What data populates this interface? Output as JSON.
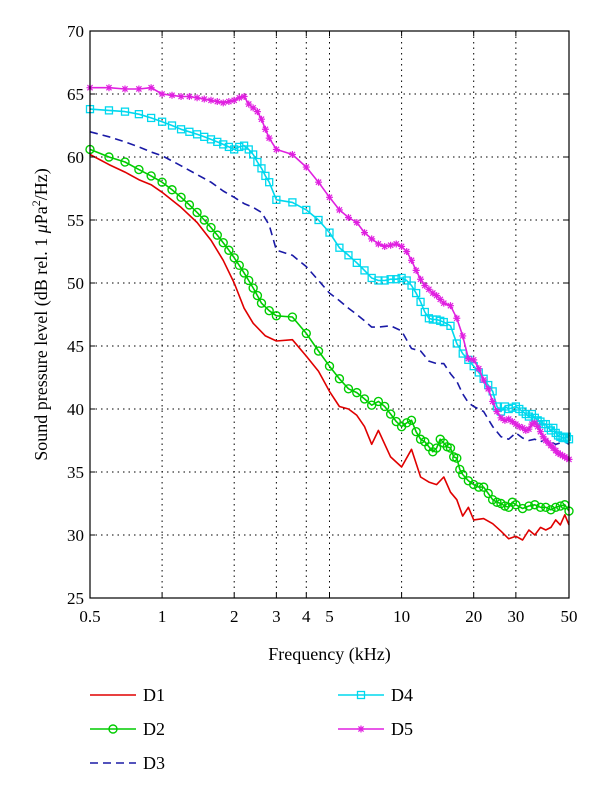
{
  "chart_data": {
    "type": "line",
    "xlabel": "Frequency (kHz)",
    "ylabel_parts": [
      "Sound pressure level (dB rel. 1 ",
      "μ",
      "Pa",
      "2",
      "/Hz)"
    ],
    "x_scale": "log",
    "xlim": [
      0.5,
      50
    ],
    "ylim": [
      25,
      70
    ],
    "x_ticks": [
      0.5,
      1,
      2,
      3,
      4,
      5,
      10,
      20,
      30,
      50
    ],
    "x_tick_labels": [
      "0.5",
      "1",
      "2",
      "3",
      "4",
      "5",
      "10",
      "20",
      "30",
      "50"
    ],
    "y_ticks": [
      25,
      30,
      35,
      40,
      45,
      50,
      55,
      60,
      65,
      70
    ],
    "y_tick_labels": [
      "25",
      "30",
      "35",
      "40",
      "45",
      "50",
      "55",
      "60",
      "65",
      "70"
    ],
    "grid": true,
    "legend_placement": "below",
    "series": [
      {
        "name": "D1",
        "color": "#e00000",
        "dash": "solid",
        "marker": "none",
        "x": [
          0.5,
          0.6,
          0.7,
          0.8,
          0.9,
          1.0,
          1.2,
          1.4,
          1.6,
          1.8,
          2.0,
          2.2,
          2.4,
          2.7,
          3.0,
          3.5,
          4.0,
          4.5,
          5.0,
          5.5,
          6.0,
          6.5,
          7.0,
          7.5,
          8.0,
          9.0,
          10.0,
          11.0,
          12.0,
          13.0,
          14.0,
          15.0,
          16.0,
          17.0,
          18.0,
          19.0,
          20.0,
          22.0,
          24.0,
          26.0,
          28.0,
          30.0,
          32.0,
          34.0,
          36.0,
          38.0,
          40.0,
          42.0,
          44.0,
          46.0,
          48.0,
          50.0
        ],
        "y": [
          60.2,
          59.4,
          58.8,
          58.2,
          57.8,
          57.2,
          56.0,
          54.8,
          53.4,
          51.8,
          50.0,
          48.0,
          46.8,
          45.8,
          45.4,
          45.5,
          44.2,
          43.0,
          41.4,
          40.2,
          40.0,
          39.5,
          38.6,
          37.2,
          38.3,
          36.2,
          35.4,
          36.8,
          34.6,
          34.2,
          34.0,
          34.6,
          33.4,
          32.8,
          31.5,
          32.2,
          31.2,
          31.3,
          30.9,
          30.3,
          29.7,
          29.9,
          29.6,
          30.4,
          30.0,
          30.6,
          30.4,
          30.6,
          31.2,
          30.8,
          31.6,
          30.8
        ]
      },
      {
        "name": "D2",
        "color": "#00cc00",
        "dash": "solid",
        "marker": "circle",
        "x": [
          0.5,
          0.6,
          0.7,
          0.8,
          0.9,
          1.0,
          1.1,
          1.2,
          1.3,
          1.4,
          1.5,
          1.6,
          1.7,
          1.8,
          1.9,
          2.0,
          2.1,
          2.2,
          2.3,
          2.4,
          2.5,
          2.6,
          2.8,
          3.0,
          3.5,
          4.0,
          4.5,
          5.0,
          5.5,
          6.0,
          6.5,
          7.0,
          7.5,
          8.0,
          8.5,
          9.0,
          9.5,
          10.0,
          10.5,
          11.0,
          11.5,
          12.0,
          12.5,
          13.0,
          13.5,
          14.0,
          14.5,
          15.0,
          15.5,
          16.0,
          16.5,
          17.0,
          17.5,
          18.0,
          19.0,
          20.0,
          21.0,
          22.0,
          23.0,
          24.0,
          25.0,
          26.0,
          27.0,
          28.0,
          29.0,
          30.0,
          32.0,
          34.0,
          36.0,
          38.0,
          40.0,
          42.0,
          44.0,
          46.0,
          48.0,
          50.0
        ],
        "y": [
          60.6,
          60.0,
          59.6,
          59.0,
          58.5,
          58.0,
          57.4,
          56.8,
          56.2,
          55.6,
          55.0,
          54.4,
          53.8,
          53.2,
          52.6,
          52.0,
          51.4,
          50.8,
          50.2,
          49.6,
          49.0,
          48.4,
          47.8,
          47.4,
          47.3,
          46.0,
          44.6,
          43.4,
          42.4,
          41.6,
          41.3,
          40.8,
          40.3,
          40.6,
          40.2,
          39.6,
          39.0,
          38.6,
          38.9,
          39.1,
          38.2,
          37.6,
          37.4,
          37.0,
          36.6,
          36.9,
          37.6,
          37.3,
          37.0,
          36.9,
          36.2,
          36.1,
          35.2,
          34.8,
          34.3,
          34.0,
          33.8,
          33.8,
          33.3,
          32.8,
          32.6,
          32.5,
          32.3,
          32.2,
          32.6,
          32.4,
          32.1,
          32.3,
          32.4,
          32.2,
          32.2,
          32.0,
          32.2,
          32.3,
          32.4,
          31.9
        ]
      },
      {
        "name": "D3",
        "color": "#1a1aa6",
        "dash": "dash",
        "marker": "none",
        "x": [
          0.5,
          0.6,
          0.7,
          0.8,
          0.9,
          1.0,
          1.2,
          1.4,
          1.6,
          1.8,
          2.0,
          2.2,
          2.4,
          2.6,
          2.8,
          3.0,
          3.5,
          4.0,
          4.5,
          5.0,
          5.5,
          6.0,
          6.5,
          7.0,
          7.5,
          8.0,
          9.0,
          10.0,
          11.0,
          12.0,
          13.0,
          14.0,
          15.0,
          16.0,
          17.0,
          18.0,
          19.0,
          20.0,
          22.0,
          24.0,
          26.0,
          28.0,
          30.0,
          32.0,
          34.0,
          36.0,
          38.0,
          40.0,
          42.0,
          44.0,
          46.0,
          48.0,
          50.0
        ],
        "y": [
          62.0,
          61.6,
          61.2,
          60.8,
          60.4,
          60.1,
          59.3,
          58.6,
          58.0,
          57.3,
          56.8,
          56.3,
          56.0,
          55.6,
          54.6,
          52.6,
          52.2,
          51.3,
          50.2,
          49.2,
          48.6,
          48.0,
          47.5,
          47.0,
          46.5,
          46.5,
          46.6,
          46.2,
          44.8,
          44.6,
          43.8,
          43.6,
          43.6,
          42.8,
          42.2,
          41.2,
          40.5,
          40.2,
          39.8,
          38.6,
          37.8,
          37.6,
          38.1,
          37.7,
          37.5,
          37.6,
          37.4,
          37.6,
          37.4,
          37.2,
          37.3,
          37.4,
          37.2
        ]
      },
      {
        "name": "D4",
        "color": "#00d8ee",
        "dash": "solid",
        "marker": "square",
        "x": [
          0.5,
          0.6,
          0.7,
          0.8,
          0.9,
          1.0,
          1.1,
          1.2,
          1.3,
          1.4,
          1.5,
          1.6,
          1.7,
          1.8,
          1.9,
          2.0,
          2.1,
          2.2,
          2.3,
          2.4,
          2.5,
          2.6,
          2.7,
          2.8,
          3.0,
          3.5,
          4.0,
          4.5,
          5.0,
          5.5,
          6.0,
          6.5,
          7.0,
          7.5,
          8.0,
          8.5,
          9.0,
          9.5,
          10.0,
          10.5,
          11.0,
          11.5,
          12.0,
          12.5,
          13.0,
          13.5,
          14.0,
          14.5,
          15.0,
          16.0,
          17.0,
          18.0,
          19.0,
          20.0,
          21.0,
          22.0,
          23.0,
          24.0,
          25.0,
          26.0,
          27.0,
          28.0,
          29.0,
          30.0,
          31.0,
          32.0,
          33.0,
          34.0,
          35.0,
          36.0,
          37.0,
          38.0,
          39.0,
          40.0,
          41.0,
          42.0,
          43.0,
          44.0,
          45.0,
          46.0,
          47.0,
          48.0,
          49.0,
          50.0
        ],
        "y": [
          63.8,
          63.7,
          63.6,
          63.4,
          63.1,
          62.8,
          62.5,
          62.2,
          62.0,
          61.8,
          61.6,
          61.4,
          61.2,
          61.0,
          60.8,
          60.6,
          60.8,
          60.9,
          60.6,
          60.2,
          59.6,
          59.1,
          58.5,
          58.0,
          56.6,
          56.4,
          55.8,
          55.0,
          54.0,
          52.8,
          52.2,
          51.6,
          51.0,
          50.4,
          50.2,
          50.2,
          50.3,
          50.3,
          50.4,
          50.2,
          49.8,
          49.2,
          48.5,
          47.7,
          47.2,
          47.1,
          47.1,
          47.0,
          46.9,
          46.6,
          45.2,
          44.4,
          43.9,
          43.4,
          42.9,
          42.4,
          41.9,
          41.4,
          40.2,
          39.8,
          40.2,
          40.0,
          40.1,
          40.2,
          40.0,
          39.8,
          39.6,
          39.4,
          39.6,
          39.3,
          39.1,
          39.0,
          38.8,
          38.8,
          38.5,
          38.3,
          38.5,
          38.1,
          37.9,
          37.8,
          37.7,
          37.7,
          37.8,
          37.6
        ]
      },
      {
        "name": "D5",
        "color": "#e020e0",
        "dash": "solid",
        "marker": "star",
        "x": [
          0.5,
          0.6,
          0.7,
          0.8,
          0.9,
          1.0,
          1.1,
          1.2,
          1.3,
          1.4,
          1.5,
          1.6,
          1.7,
          1.8,
          1.9,
          2.0,
          2.1,
          2.2,
          2.3,
          2.4,
          2.5,
          2.6,
          2.7,
          2.8,
          3.0,
          3.5,
          4.0,
          4.5,
          5.0,
          5.5,
          6.0,
          6.5,
          7.0,
          7.5,
          8.0,
          8.5,
          9.0,
          9.5,
          10.0,
          10.5,
          11.0,
          11.5,
          12.0,
          12.5,
          13.0,
          13.5,
          14.0,
          14.5,
          15.0,
          16.0,
          17.0,
          18.0,
          19.0,
          20.0,
          21.0,
          22.0,
          23.0,
          24.0,
          25.0,
          26.0,
          27.0,
          28.0,
          29.0,
          30.0,
          31.0,
          32.0,
          33.0,
          34.0,
          35.0,
          36.0,
          37.0,
          38.0,
          39.0,
          40.0,
          41.0,
          42.0,
          43.0,
          44.0,
          45.0,
          46.0,
          47.0,
          48.0,
          49.0,
          50.0
        ],
        "y": [
          65.5,
          65.5,
          65.4,
          65.4,
          65.5,
          65.0,
          64.9,
          64.8,
          64.8,
          64.7,
          64.6,
          64.5,
          64.4,
          64.3,
          64.4,
          64.5,
          64.7,
          64.8,
          64.2,
          63.9,
          63.6,
          63.0,
          62.2,
          61.5,
          60.6,
          60.2,
          59.2,
          58.0,
          56.8,
          55.8,
          55.2,
          54.8,
          54.0,
          53.5,
          53.1,
          52.9,
          53.0,
          53.1,
          52.9,
          52.5,
          51.8,
          51.0,
          50.3,
          49.8,
          49.5,
          49.2,
          49.0,
          48.7,
          48.4,
          48.2,
          47.2,
          45.8,
          44.0,
          43.9,
          43.2,
          42.3,
          41.6,
          40.6,
          39.8,
          39.3,
          39.1,
          39.2,
          39.0,
          38.8,
          38.6,
          38.5,
          38.3,
          38.4,
          38.8,
          38.9,
          38.6,
          38.2,
          37.8,
          37.5,
          37.3,
          37.1,
          36.9,
          36.7,
          36.5,
          36.4,
          36.3,
          36.2,
          36.1,
          36.0
        ]
      }
    ]
  }
}
